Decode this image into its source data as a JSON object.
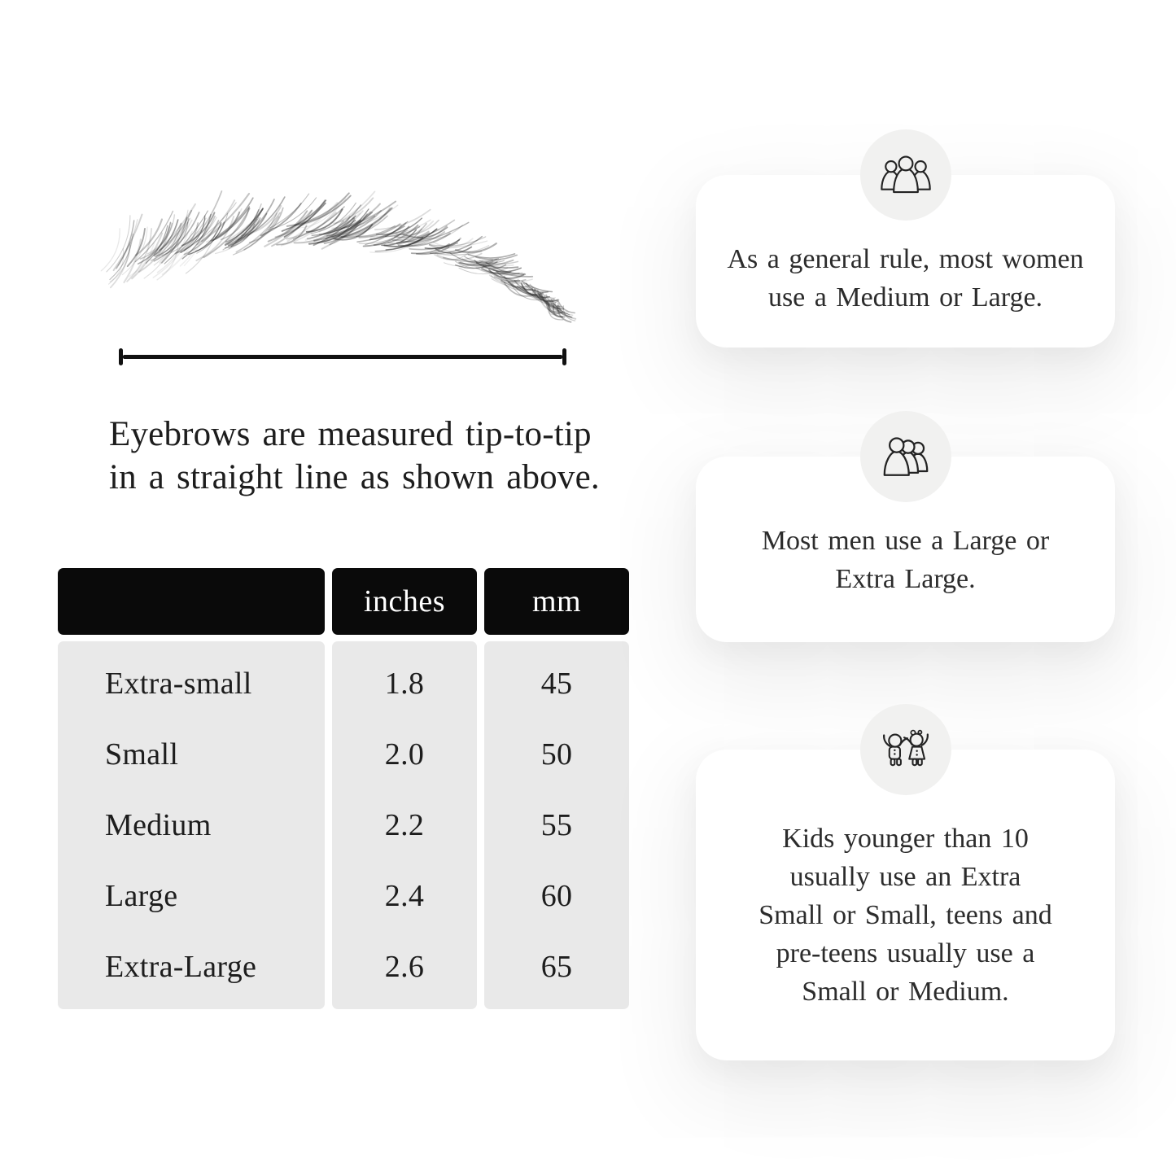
{
  "colors": {
    "text": "#1d1d1d",
    "measure_line": "#111111",
    "table_header_bg": "#0a0a0a",
    "table_header_text": "#ffffff",
    "table_body_bg": "#e9e9e9",
    "card_bg": "#ffffff",
    "icon_circle_bg": "#f1f1f0",
    "icon_stroke": "#232323"
  },
  "measure_figure": {
    "illustration": "hand-drawn-eyebrow-sketch",
    "caption_lines": [
      "Eyebrows are measured tip-to-tip",
      "in a straight line as shown above."
    ]
  },
  "size_table": {
    "column_headers": [
      "",
      "inches",
      "mm"
    ],
    "rows": [
      {
        "label": "Extra-small",
        "inches": "1.8",
        "mm": "45"
      },
      {
        "label": "Small",
        "inches": "2.0",
        "mm": "50"
      },
      {
        "label": "Medium",
        "inches": "2.2",
        "mm": "55"
      },
      {
        "label": "Large",
        "inches": "2.4",
        "mm": "60"
      },
      {
        "label": "Extra-Large",
        "inches": "2.6",
        "mm": "65"
      }
    ]
  },
  "cards": [
    {
      "icon": "women-group-icon",
      "lines": [
        "As a general rule, most women",
        "use a Medium or Large."
      ]
    },
    {
      "icon": "men-group-icon",
      "lines": [
        "Most men use a Large or",
        "Extra Large."
      ]
    },
    {
      "icon": "kids-icon",
      "lines": [
        "Kids younger than 10",
        "usually use an Extra",
        "Small or Small, teens and",
        "pre-teens usually use a",
        "Small or Medium."
      ]
    }
  ]
}
